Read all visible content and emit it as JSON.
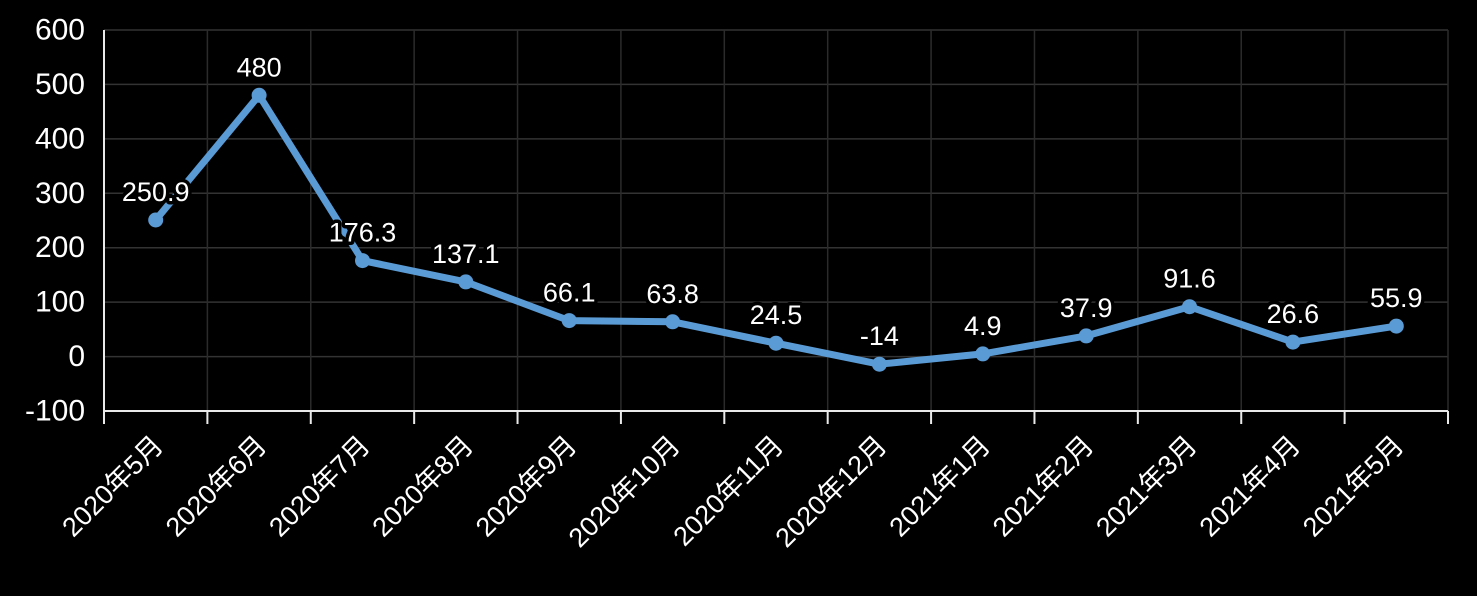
{
  "chart_data": {
    "type": "line",
    "title": "",
    "xlabel": "",
    "ylabel": "",
    "categories": [
      "2020年5月",
      "2020年6月",
      "2020年7月",
      "2020年8月",
      "2020年9月",
      "2020年10月",
      "2020年11月",
      "2020年12月",
      "2021年1月",
      "2021年2月",
      "2021年3月",
      "2021年4月",
      "2021年5月"
    ],
    "values": [
      250.9,
      480,
      176.3,
      137.1,
      66.1,
      63.8,
      24.5,
      -14,
      4.9,
      37.9,
      91.6,
      26.6,
      55.9
    ],
    "labels": [
      "250.9",
      "480",
      "176.3",
      "137.1",
      "66.1",
      "63.8",
      "24.5",
      "-14",
      "4.9",
      "37.9",
      "91.6",
      "26.6",
      "55.9"
    ],
    "ylim": [
      -100,
      600
    ],
    "yticks": [
      600,
      500,
      400,
      300,
      200,
      100,
      0,
      -100
    ],
    "ytick_labels": [
      "600",
      "500",
      "400",
      "300",
      "200",
      "100",
      "0",
      "-100"
    ],
    "grid": true,
    "legend_position": "none",
    "colors": {
      "background": "#000000",
      "series_line": "#5B9BD5",
      "marker_fill": "#5B9BD5",
      "gridline_h": "#333333",
      "gridline_v": "#2B2B2B",
      "axis_line": "#EAEAEA",
      "axis_tick_label": "#FFFFFF",
      "data_label_text": "#FFFFFF",
      "data_label_halo": "#000000"
    }
  }
}
